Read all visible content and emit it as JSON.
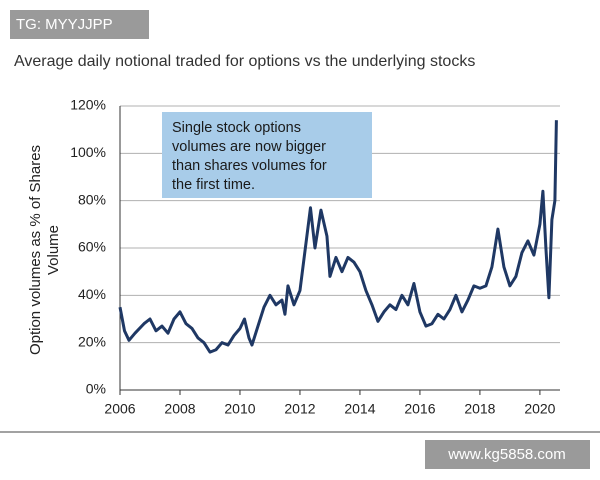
{
  "watermark_top": "TG: MYYJJPP",
  "watermark_bottom": "www.kg5858.com",
  "chart_data": {
    "type": "line",
    "title": "Average daily notional traded for options vs the underlying stocks",
    "ylabel": [
      "Option volumes as % of  Shares",
      "Volume"
    ],
    "annotation": [
      "Single stock options",
      "volumes are now bigger",
      "than shares volumes for",
      "the first time."
    ],
    "color": "#1f3864",
    "grid": true,
    "xlim": [
      2006,
      2020.67
    ],
    "xticks": [
      2006,
      2008,
      2010,
      2012,
      2014,
      2016,
      2018,
      2020
    ],
    "ylim": [
      0,
      120
    ],
    "yticks": [
      {
        "value": 0,
        "label": "0%"
      },
      {
        "value": 20,
        "label": "20%"
      },
      {
        "value": 40,
        "label": "40%"
      },
      {
        "value": 60,
        "label": "60%"
      },
      {
        "value": 80,
        "label": "80%"
      },
      {
        "value": 100,
        "label": "100%"
      },
      {
        "value": 120,
        "label": "120%"
      }
    ],
    "x": [
      2006.0,
      2006.15,
      2006.3,
      2006.5,
      2006.8,
      2007.0,
      2007.2,
      2007.4,
      2007.6,
      2007.8,
      2008.0,
      2008.2,
      2008.4,
      2008.6,
      2008.8,
      2009.0,
      2009.2,
      2009.4,
      2009.6,
      2009.8,
      2010.0,
      2010.15,
      2010.3,
      2010.4,
      2010.6,
      2010.8,
      2011.0,
      2011.2,
      2011.4,
      2011.5,
      2011.6,
      2011.8,
      2012.0,
      2012.2,
      2012.35,
      2012.5,
      2012.7,
      2012.9,
      2013.0,
      2013.2,
      2013.4,
      2013.6,
      2013.8,
      2014.0,
      2014.2,
      2014.4,
      2014.6,
      2014.8,
      2015.0,
      2015.2,
      2015.4,
      2015.6,
      2015.8,
      2016.0,
      2016.2,
      2016.4,
      2016.6,
      2016.8,
      2017.0,
      2017.2,
      2017.4,
      2017.6,
      2017.8,
      2018.0,
      2018.2,
      2018.4,
      2018.6,
      2018.8,
      2019.0,
      2019.2,
      2019.4,
      2019.6,
      2019.8,
      2020.0,
      2020.1,
      2020.2,
      2020.3,
      2020.4,
      2020.5,
      2020.55
    ],
    "values": [
      35,
      25,
      21,
      24,
      28,
      30,
      25,
      27,
      24,
      30,
      33,
      28,
      26,
      22,
      20,
      16,
      17,
      20,
      19,
      23,
      26,
      30,
      22,
      19,
      27,
      35,
      40,
      36,
      38,
      32,
      44,
      36,
      42,
      62,
      77,
      60,
      76,
      65,
      48,
      56,
      50,
      56,
      54,
      50,
      42,
      36,
      29,
      33,
      36,
      34,
      40,
      36,
      45,
      33,
      27,
      28,
      32,
      30,
      34,
      40,
      33,
      38,
      44,
      43,
      44,
      52,
      68,
      52,
      44,
      48,
      58,
      63,
      57,
      70,
      84,
      60,
      39,
      72,
      80,
      114
    ]
  }
}
